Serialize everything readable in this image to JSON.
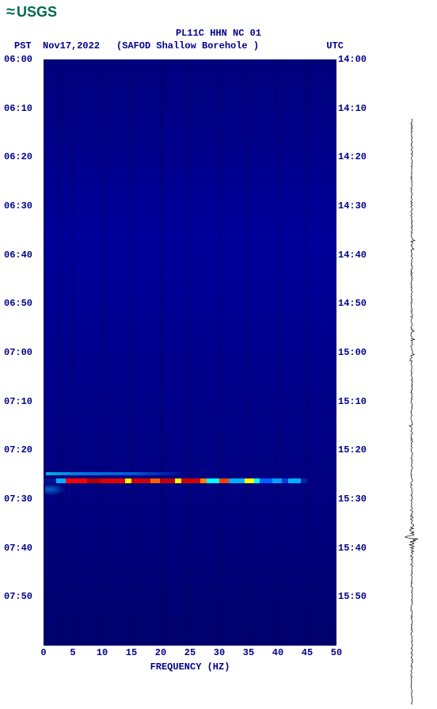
{
  "logo": {
    "text": "USGS"
  },
  "header": {
    "title": "PL11C HHN NC 01",
    "pst_label": "PST",
    "date": "Nov17,2022",
    "subtitle": "(SAFOD Shallow Borehole )",
    "utc_label": "UTC"
  },
  "spectrogram": {
    "type": "spectrogram",
    "background_color_top": "#00007d",
    "background_color_mid": "#00009a",
    "background_color_bottom": "#00006d",
    "grid_color": "#000040",
    "xlabel": "FREQUENCY (HZ)",
    "xlim": [
      0,
      50
    ],
    "xtick_step": 5,
    "xticks": [
      "0",
      "5",
      "10",
      "15",
      "20",
      "25",
      "30",
      "35",
      "40",
      "45",
      "50"
    ],
    "left_axis": {
      "label": "PST",
      "ticks": [
        "06:00",
        "06:10",
        "06:20",
        "06:30",
        "06:40",
        "06:50",
        "07:00",
        "07:10",
        "07:20",
        "07:30",
        "07:40",
        "07:50"
      ]
    },
    "right_axis": {
      "label": "UTC",
      "ticks": [
        "14:00",
        "14:10",
        "14:20",
        "14:30",
        "14:40",
        "14:50",
        "15:00",
        "15:10",
        "15:20",
        "15:30",
        "15:40",
        "15:50"
      ]
    },
    "time_range_minutes": 120,
    "event": {
      "time_offset_frac": 0.715,
      "freq_start": 0,
      "freq_end": 45,
      "segments": [
        {
          "w": 4,
          "color": "#001090"
        },
        {
          "w": 3,
          "color": "#00b0ff"
        },
        {
          "w": 7,
          "color": "#ff0000"
        },
        {
          "w": 4,
          "color": "#b00000"
        },
        {
          "w": 8,
          "color": "#e00000"
        },
        {
          "w": 2,
          "color": "#ffff00"
        },
        {
          "w": 6,
          "color": "#d00000"
        },
        {
          "w": 3,
          "color": "#ff6000"
        },
        {
          "w": 5,
          "color": "#c00000"
        },
        {
          "w": 2,
          "color": "#ffff00"
        },
        {
          "w": 6,
          "color": "#d00000"
        },
        {
          "w": 2,
          "color": "#ff8000"
        },
        {
          "w": 4,
          "color": "#00ffff"
        },
        {
          "w": 3,
          "color": "#ff4000"
        },
        {
          "w": 5,
          "color": "#00b0ff"
        },
        {
          "w": 3,
          "color": "#ffff00"
        },
        {
          "w": 2,
          "color": "#00ffff"
        },
        {
          "w": 4,
          "color": "#0060ff"
        },
        {
          "w": 3,
          "color": "#00a0ff"
        },
        {
          "w": 2,
          "color": "#0040d0"
        },
        {
          "w": 4,
          "color": "#00b0ff"
        },
        {
          "w": 2,
          "color": "#0020a0"
        }
      ]
    }
  },
  "seismogram": {
    "type": "waveform",
    "background": "#ffffff",
    "trace_color": "#000000",
    "baseline_x": 28,
    "noise_amp": 2,
    "event_time_frac": 0.715,
    "event_max_amp": 26
  },
  "colors": {
    "text": "#00008b",
    "logo": "#006a4e"
  },
  "fonts": {
    "mono_size": 12,
    "title_size": 12,
    "weight": "bold"
  }
}
